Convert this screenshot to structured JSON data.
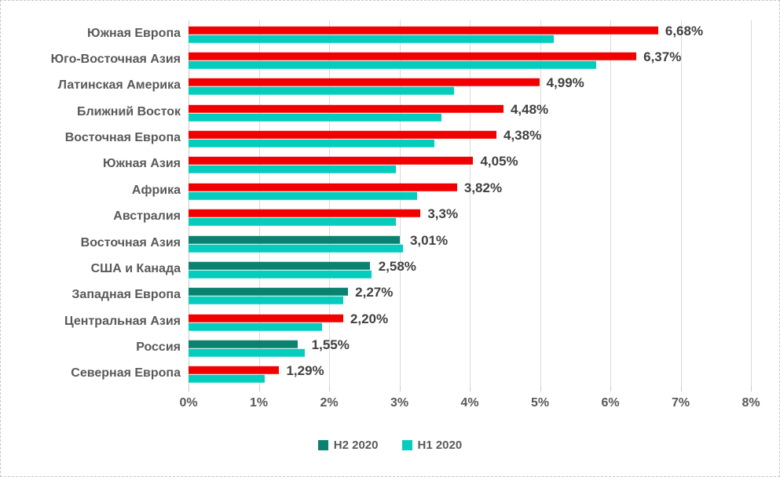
{
  "chart_data": {
    "type": "bar",
    "orientation": "horizontal",
    "title": "",
    "xlabel": "",
    "ylabel": "",
    "xlim": [
      0,
      8
    ],
    "grid": true,
    "legend_position": "bottom",
    "x_ticks": [
      "0%",
      "1%",
      "2%",
      "3%",
      "4%",
      "5%",
      "6%",
      "7%",
      "8%"
    ],
    "categories": [
      "Южная Европа",
      "Юго-Восточная Азия",
      "Латинская Америка",
      "Ближний Восток",
      "Восточная Европа",
      "Южная Азия",
      "Африка",
      "Австралия",
      "Восточная Азия",
      "США и Канада",
      "Западная Европа",
      "Центральная Азия",
      "Россия",
      "Северная Европа"
    ],
    "series": [
      {
        "name": "H2 2020",
        "values": [
          6.68,
          6.37,
          4.99,
          4.48,
          4.38,
          4.05,
          3.82,
          3.3,
          3.01,
          2.58,
          2.27,
          2.2,
          1.55,
          1.29
        ],
        "value_labels": [
          "6,68%",
          "6,37%",
          "4,99%",
          "4,48%",
          "4,38%",
          "4,05%",
          "3,82%",
          "3,3%",
          "3,01%",
          "2,58%",
          "2,27%",
          "2,20%",
          "1,55%",
          "1,29%"
        ],
        "bar_colors": [
          "#f20000",
          "#f20000",
          "#f20000",
          "#f20000",
          "#f20000",
          "#f20000",
          "#f20000",
          "#f20000",
          "#0b8170",
          "#0b8170",
          "#0b8170",
          "#f20000",
          "#0b8170",
          "#f20000"
        ]
      },
      {
        "name": "H1 2020",
        "values": [
          5.2,
          5.8,
          3.78,
          3.6,
          3.5,
          2.95,
          3.25,
          2.95,
          3.05,
          2.6,
          2.2,
          1.9,
          1.65,
          1.08
        ],
        "color": "#04cdbe"
      }
    ],
    "colors": {
      "increase_red": "#f20000",
      "h2_teal": "#0b8170",
      "h1_cyan": "#04cdbe",
      "gridline": "#d9d9d9",
      "category_text": "#595959",
      "value_text": "#404040"
    },
    "legend": [
      {
        "label": "H2 2020",
        "color": "#0b8170"
      },
      {
        "label": "H1 2020",
        "color": "#04cdbe"
      }
    ]
  }
}
